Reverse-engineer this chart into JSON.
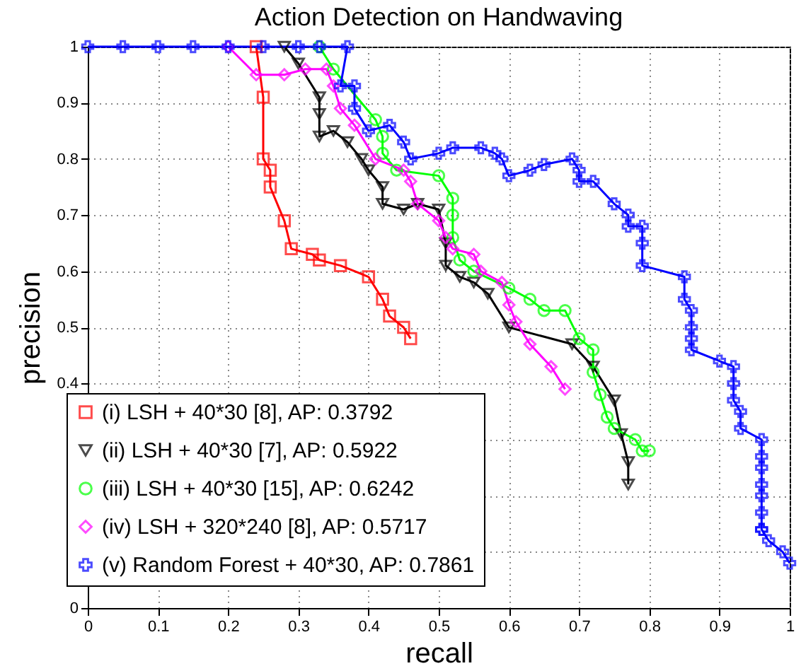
{
  "chart_data": {
    "type": "line",
    "title": "Action Detection on Handwaving",
    "xlabel": "recall",
    "ylabel": "precision",
    "xlim": [
      0,
      1
    ],
    "ylim": [
      0,
      1
    ],
    "xticks": [
      0,
      0.1,
      0.2,
      0.3,
      0.4,
      0.5,
      0.6,
      0.7,
      0.8,
      0.9,
      1
    ],
    "yticks": [
      0,
      {
        "value": 0.1,
        "label": null
      },
      {
        "value": 0.2,
        "label": null
      },
      {
        "value": 0.3,
        "label": null
      },
      0.4,
      0.5,
      0.6,
      0.7,
      0.8,
      0.9,
      1
    ],
    "grid": true,
    "legend": "bottom left",
    "line_style": "solid",
    "series": [
      {
        "name": "(i) LSH + 40*30 [8], AP: 0.3792",
        "color": "#ff0000",
        "marker": "square",
        "x": [
          0.24,
          0.25,
          0.25,
          0.26,
          0.26,
          0.28,
          0.29,
          0.32,
          0.33,
          0.36,
          0.4,
          0.42,
          0.43,
          0.45,
          0.46
        ],
        "values": [
          1,
          0.91,
          0.8,
          0.78,
          0.75,
          0.69,
          0.64,
          0.63,
          0.62,
          0.61,
          0.59,
          0.55,
          0.52,
          0.5,
          0.48
        ]
      },
      {
        "name": "(ii) LSH + 40*30 [7], AP: 0.5922",
        "color": "#000000",
        "marker": "triangle",
        "x": [
          0.28,
          0.3,
          0.33,
          0.33,
          0.33,
          0.35,
          0.37,
          0.39,
          0.4,
          0.42,
          0.42,
          0.45,
          0.47,
          0.5,
          0.51,
          0.51,
          0.53,
          0.55,
          0.57,
          0.6,
          0.69,
          0.72,
          0.75,
          0.76,
          0.77,
          0.77
        ],
        "values": [
          1,
          0.97,
          0.91,
          0.88,
          0.84,
          0.85,
          0.83,
          0.8,
          0.78,
          0.75,
          0.72,
          0.71,
          0.72,
          0.71,
          0.65,
          0.61,
          0.59,
          0.58,
          0.56,
          0.5,
          0.47,
          0.43,
          0.37,
          0.31,
          0.26,
          0.22
        ]
      },
      {
        "name": "(iii) LSH + 40*30 [15], AP: 0.6242",
        "color": "#00ff00",
        "marker": "circle",
        "x": [
          0.33,
          0.35,
          0.41,
          0.42,
          0.42,
          0.44,
          0.5,
          0.52,
          0.52,
          0.52,
          0.53,
          0.55,
          0.6,
          0.63,
          0.65,
          0.68,
          0.7,
          0.72,
          0.72,
          0.73,
          0.74,
          0.75,
          0.78,
          0.79,
          0.8
        ],
        "values": [
          1,
          0.96,
          0.87,
          0.84,
          0.81,
          0.78,
          0.77,
          0.73,
          0.7,
          0.66,
          0.62,
          0.6,
          0.57,
          0.55,
          0.53,
          0.53,
          0.48,
          0.46,
          0.42,
          0.38,
          0.34,
          0.32,
          0.3,
          0.28,
          0.28
        ]
      },
      {
        "name": "(iv) LSH + 320*240 [8], AP: 0.5717",
        "color": "#ff00ff",
        "marker": "diamond",
        "x": [
          0.2,
          0.24,
          0.28,
          0.31,
          0.34,
          0.35,
          0.36,
          0.38,
          0.41,
          0.45,
          0.46,
          0.47,
          0.5,
          0.51,
          0.52,
          0.55,
          0.56,
          0.59,
          0.6,
          0.61,
          0.63,
          0.66,
          0.68
        ],
        "values": [
          1,
          0.95,
          0.95,
          0.96,
          0.96,
          0.93,
          0.89,
          0.86,
          0.8,
          0.78,
          0.76,
          0.72,
          0.69,
          0.66,
          0.64,
          0.63,
          0.6,
          0.58,
          0.54,
          0.51,
          0.47,
          0.43,
          0.39
        ]
      },
      {
        "name": "(v) Random Forest + 40*30, AP: 0.7861",
        "color": "#0000ff",
        "marker": "cross",
        "x": [
          0,
          0.05,
          0.1,
          0.15,
          0.2,
          0.25,
          0.3,
          0.33,
          0.37,
          0.36,
          0.38,
          0.38,
          0.4,
          0.43,
          0.45,
          0.46,
          0.5,
          0.52,
          0.56,
          0.58,
          0.59,
          0.6,
          0.63,
          0.65,
          0.69,
          0.7,
          0.7,
          0.72,
          0.75,
          0.77,
          0.77,
          0.79,
          0.79,
          0.79,
          0.85,
          0.85,
          0.86,
          0.86,
          0.86,
          0.86,
          0.9,
          0.92,
          0.92,
          0.92,
          0.93,
          0.93,
          0.96,
          0.96,
          0.96,
          0.96,
          0.96,
          0.96,
          0.96,
          0.96,
          0.97,
          0.99,
          1
        ],
        "values": [
          1,
          1,
          1,
          1,
          1,
          1,
          1,
          1,
          1,
          0.93,
          0.93,
          0.89,
          0.85,
          0.86,
          0.83,
          0.8,
          0.81,
          0.82,
          0.82,
          0.81,
          0.8,
          0.77,
          0.78,
          0.79,
          0.8,
          0.78,
          0.76,
          0.76,
          0.72,
          0.7,
          0.68,
          0.68,
          0.65,
          0.61,
          0.59,
          0.55,
          0.53,
          0.5,
          0.48,
          0.46,
          0.44,
          0.43,
          0.4,
          0.37,
          0.35,
          0.32,
          0.3,
          0.27,
          0.25,
          0.22,
          0.2,
          0.17,
          0.14,
          0.14,
          0.12,
          0.1,
          0.08
        ]
      }
    ]
  }
}
